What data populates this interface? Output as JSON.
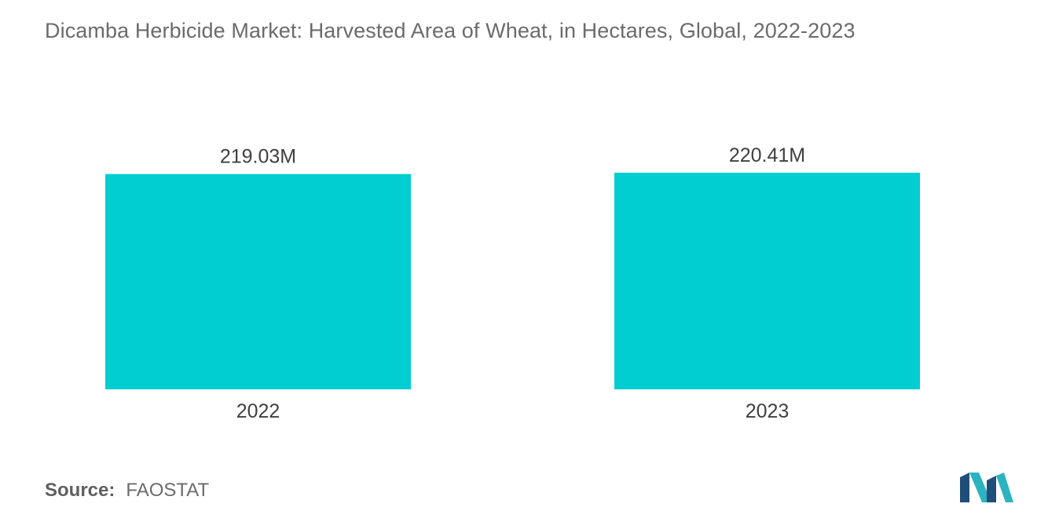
{
  "title": "Dicamba Herbicide Market: Harvested Area of Wheat, in Hectares, Global, 2022-2023",
  "source": {
    "label": "Source:",
    "value": "FAOSTAT"
  },
  "colors": {
    "bar": "#00CED1",
    "text": "#404040",
    "muted": "#6b6b6b",
    "logo_dark": "#1f4e79",
    "logo_light": "#2bb3c0"
  },
  "logo_icon": "mordor-logo-icon",
  "chart_data": {
    "type": "bar",
    "title": "Dicamba Herbicide Market: Harvested Area of Wheat, in Hectares, Global, 2022-2023",
    "categories": [
      "2022",
      "2023"
    ],
    "values": [
      219.03,
      220.41
    ],
    "value_labels": [
      "219.03M",
      "220.41M"
    ],
    "unit": "M",
    "xlabel": "",
    "ylabel": "",
    "ylim": [
      0,
      220.41
    ],
    "grid": false,
    "legend": "none"
  }
}
